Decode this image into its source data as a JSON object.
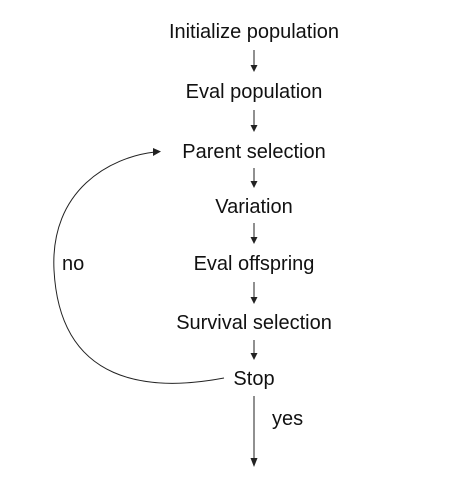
{
  "steps": [
    "Initialize population",
    "Eval population",
    "Parent selection",
    "Variation",
    "Eval offspring",
    "Survival selection",
    "Stop"
  ],
  "edge_labels": {
    "loop": "no",
    "exit": "yes"
  },
  "colors": {
    "text": "#111111",
    "line": "#222222",
    "background": "#ffffff"
  }
}
